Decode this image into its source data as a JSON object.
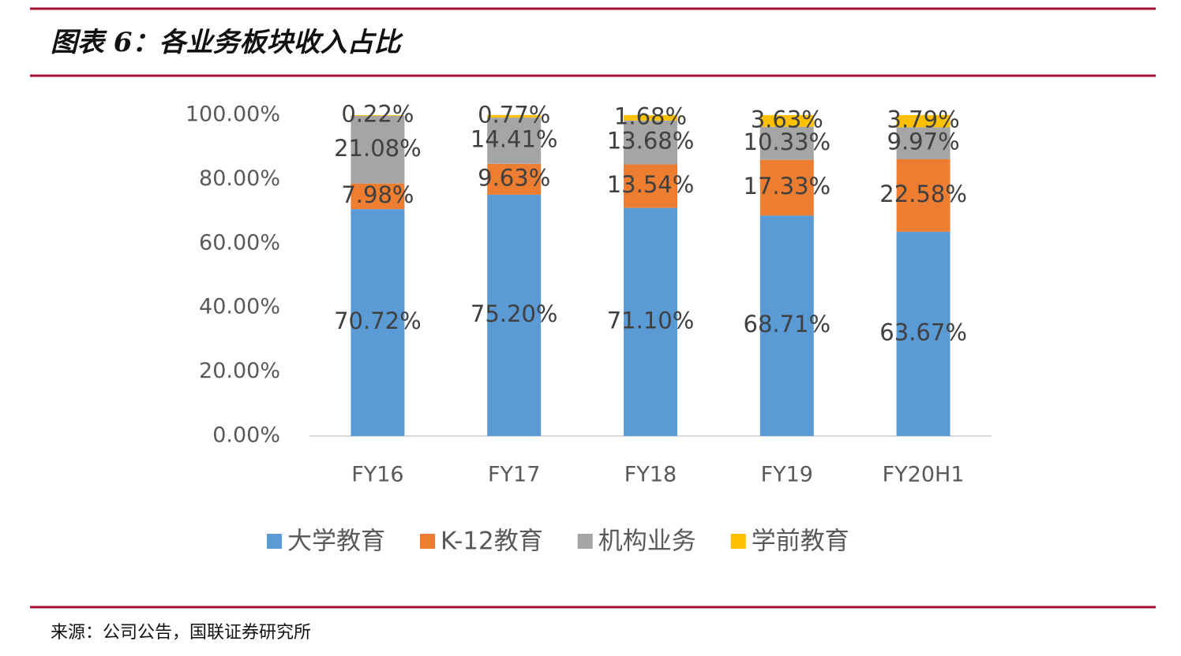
{
  "header": {
    "title": "图表 6：各业务板块收入占比"
  },
  "chart_data": {
    "type": "bar",
    "stacked": true,
    "categories": [
      "FY16",
      "FY17",
      "FY18",
      "FY19",
      "FY20H1"
    ],
    "series": [
      {
        "name": "大学教育",
        "color": "#5b9bd5",
        "values": [
          70.72,
          75.2,
          71.1,
          68.71,
          63.67
        ],
        "value_labels": [
          "70.72%",
          "75.20%",
          "71.10%",
          "68.71%",
          "63.67%"
        ]
      },
      {
        "name": "K-12教育",
        "color": "#ed7d31",
        "values": [
          7.98,
          9.63,
          13.54,
          17.33,
          22.58
        ],
        "value_labels": [
          "7.98%",
          "9.63%",
          "13.54%",
          "17.33%",
          "22.58%"
        ]
      },
      {
        "name": "机构业务",
        "color": "#a5a5a5",
        "values": [
          21.08,
          14.41,
          13.68,
          10.33,
          9.97
        ],
        "value_labels": [
          "21.08%",
          "14.41%",
          "13.68%",
          "10.33%",
          "9.97%"
        ]
      },
      {
        "name": "学前教育",
        "color": "#ffc000",
        "values": [
          0.22,
          0.77,
          1.68,
          3.63,
          3.79
        ],
        "value_labels": [
          "0.22%",
          "0.77%",
          "1.68%",
          "3.63%",
          "3.79%"
        ]
      }
    ],
    "ylim": [
      0,
      100
    ],
    "yticks": [
      {
        "value": 0,
        "label": "0.00%"
      },
      {
        "value": 20,
        "label": "20.00%"
      },
      {
        "value": 40,
        "label": "40.00%"
      },
      {
        "value": 60,
        "label": "60.00%"
      },
      {
        "value": 80,
        "label": "80.00%"
      },
      {
        "value": 100,
        "label": "100.00%"
      }
    ],
    "grid": false,
    "legend": "bottom"
  },
  "footer": {
    "source": "来源：公司公告，国联证券研究所"
  }
}
